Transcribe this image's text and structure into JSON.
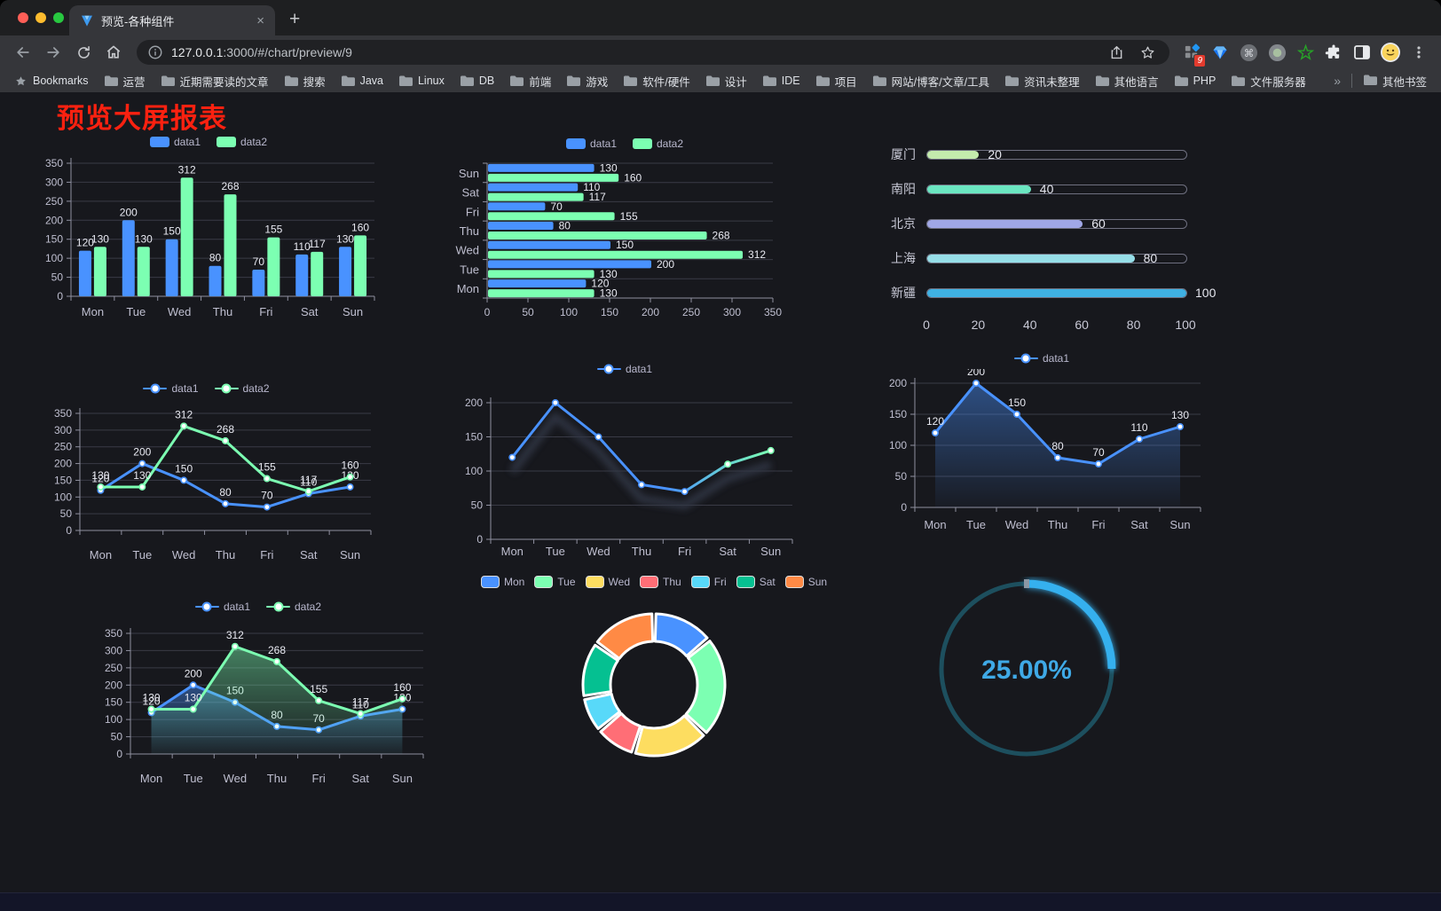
{
  "window": {
    "tab": {
      "title": "预览-各种组件",
      "close_glyph": "×"
    },
    "new_tab_button": "+",
    "url": {
      "host": "127.0.0.1",
      "rest": ":3000/#/chart/preview/9",
      "full": "127.0.0.1:3000/#/chart/preview/9"
    },
    "extensions_badge": "9"
  },
  "bookmarks_bar": {
    "label": "Bookmarks",
    "folders": [
      "运营",
      "近期需要读的文章",
      "搜索",
      "Java",
      "Linux",
      "DB",
      "前端",
      "游戏",
      "软件/硬件",
      "设计",
      "IDE",
      "项目",
      "网站/博客/文章/工具",
      "资讯未整理",
      "其他语言",
      "PHP",
      "文件服务器"
    ],
    "overflow_chevron": "»",
    "other_bookmarks": "其他书签"
  },
  "page": {
    "title": "预览大屏报表"
  },
  "theme": {
    "title_red": "#fb2110",
    "background": "#17181d",
    "data1_blue": "#4992ff",
    "data2_green": "#7cffb2",
    "axis_text": "#bfbfd0",
    "grid_line": "#3a3b46"
  },
  "chart_data": [
    {
      "name": "grouped-bar",
      "type": "bar",
      "categories": [
        "Mon",
        "Tue",
        "Wed",
        "Thu",
        "Fri",
        "Sat",
        "Sun"
      ],
      "series": [
        {
          "name": "data1",
          "color": "#4992ff",
          "values": [
            120,
            200,
            150,
            80,
            70,
            110,
            130
          ]
        },
        {
          "name": "data2",
          "color": "#7cffb2",
          "values": [
            130,
            130,
            312,
            268,
            155,
            117,
            160
          ]
        }
      ],
      "ylim": [
        0,
        350
      ],
      "ytick_step": 50,
      "legend_position": "top",
      "grid": true,
      "value_labels": true
    },
    {
      "name": "horizontal-grouped-bar",
      "type": "bar",
      "orientation": "horizontal",
      "categories": [
        "Mon",
        "Tue",
        "Wed",
        "Thu",
        "Fri",
        "Sat",
        "Sun"
      ],
      "series": [
        {
          "name": "data1",
          "color": "#4992ff",
          "values": [
            120,
            200,
            150,
            80,
            70,
            110,
            130
          ]
        },
        {
          "name": "data2",
          "color": "#7cffb2",
          "values": [
            130,
            130,
            312,
            268,
            155,
            117,
            160
          ]
        }
      ],
      "xlim": [
        0,
        350
      ],
      "xtick_step": 50,
      "legend_position": "top",
      "grid": true,
      "value_labels": true
    },
    {
      "name": "city-progress-bars",
      "type": "bar",
      "variant": "progress",
      "orientation": "horizontal",
      "categories": [
        "厦门",
        "南阳",
        "北京",
        "上海",
        "新疆"
      ],
      "values": [
        20,
        40,
        60,
        80,
        100
      ],
      "colors": [
        "#c4ebad",
        "#6be6c1",
        "#a0a7e6",
        "#96dee8",
        "#3fb1e3"
      ],
      "xlim": [
        0,
        100
      ],
      "xticks": [
        0,
        20,
        40,
        60,
        80,
        100
      ],
      "value_labels": true
    },
    {
      "name": "two-series-line",
      "type": "line",
      "categories": [
        "Mon",
        "Tue",
        "Wed",
        "Thu",
        "Fri",
        "Sat",
        "Sun"
      ],
      "series": [
        {
          "name": "data1",
          "color": "#4992ff",
          "values": [
            120,
            200,
            150,
            80,
            70,
            110,
            130
          ]
        },
        {
          "name": "data2",
          "color": "#7cffb2",
          "values": [
            130,
            130,
            312,
            268,
            155,
            117,
            160
          ]
        }
      ],
      "ylim": [
        0,
        350
      ],
      "ytick_step": 50,
      "legend_position": "top",
      "grid": true,
      "value_labels": true
    },
    {
      "name": "gradient-line",
      "type": "line",
      "categories": [
        "Mon",
        "Tue",
        "Wed",
        "Thu",
        "Fri",
        "Sat",
        "Sun"
      ],
      "series": [
        {
          "name": "data1",
          "gradient": [
            "#4992ff",
            "#7cffb2"
          ],
          "values": [
            120,
            200,
            150,
            80,
            70,
            110,
            130
          ]
        }
      ],
      "ylim": [
        0,
        200
      ],
      "ytick_step": 50,
      "legend_position": "top",
      "grid": true,
      "value_labels": false
    },
    {
      "name": "single-series-area",
      "type": "area",
      "categories": [
        "Mon",
        "Tue",
        "Wed",
        "Thu",
        "Fri",
        "Sat",
        "Sun"
      ],
      "series": [
        {
          "name": "data1",
          "color": "#4992ff",
          "values": [
            120,
            200,
            150,
            80,
            70,
            110,
            130
          ]
        }
      ],
      "ylim": [
        0,
        200
      ],
      "ytick_step": 50,
      "legend_position": "top",
      "grid": true,
      "value_labels": true
    },
    {
      "name": "two-series-area",
      "type": "area",
      "categories": [
        "Mon",
        "Tue",
        "Wed",
        "Thu",
        "Fri",
        "Sat",
        "Sun"
      ],
      "series": [
        {
          "name": "data1",
          "color": "#4992ff",
          "values": [
            120,
            200,
            150,
            80,
            70,
            110,
            130
          ]
        },
        {
          "name": "data2",
          "color": "#7cffb2",
          "values": [
            130,
            130,
            312,
            268,
            155,
            117,
            160
          ]
        }
      ],
      "ylim": [
        0,
        350
      ],
      "ytick_step": 50,
      "legend_position": "top",
      "grid": true,
      "value_labels": true
    },
    {
      "name": "weekday-donut",
      "type": "pie",
      "variant": "donut",
      "categories": [
        "Mon",
        "Tue",
        "Wed",
        "Thu",
        "Fri",
        "Sat",
        "Sun"
      ],
      "values": [
        120,
        200,
        150,
        80,
        70,
        110,
        130
      ],
      "colors": [
        "#4992ff",
        "#7cffb2",
        "#fddd60",
        "#ff6e76",
        "#58d9f9",
        "#05c091",
        "#ff8a45"
      ],
      "legend_position": "top"
    },
    {
      "name": "percent-gauge",
      "type": "gauge",
      "value": 25,
      "max": 100,
      "label": "25.00%",
      "color": "#35b0ee",
      "track_color": "#1d4f5e"
    }
  ]
}
